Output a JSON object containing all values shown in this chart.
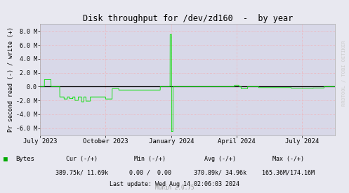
{
  "title": "Disk throughput for /dev/zd160  -  by year",
  "ylabel": "Pr second read (-) / write (+)",
  "watermark": "RRDTOOL / TOBI OETIKER",
  "munin_version": "Munin 2.0.75",
  "bg_color": "#e8e8f0",
  "plot_bg_color": "#d8d8e8",
  "grid_color_v": "#ff9999",
  "grid_color_h": "#ff9999",
  "ylim": [
    -7000000,
    9000000
  ],
  "yticks": [
    -6000000,
    -4000000,
    -2000000,
    0,
    2000000,
    4000000,
    6000000,
    8000000
  ],
  "ytick_labels": [
    "-6.0 M",
    "-4.0 M",
    "-2.0 M",
    "0.0",
    "2.0 M",
    "4.0 M",
    "6.0 M",
    "8.0 M"
  ],
  "line_color": "#00e000",
  "zero_line_color": "#000000",
  "legend_label": "Bytes",
  "legend_color": "#00aa00",
  "last_update": "Last update: Wed Aug 14 02:06:03 2024",
  "xtick_labels": [
    "July 2023",
    "October 2023",
    "January 2024",
    "April 2024",
    "July 2024"
  ],
  "col_headers": [
    "Cur (-/+)",
    "Min (-/+)",
    "Avg (-/+)",
    "Max (-/+)"
  ],
  "col_values": [
    "389.75k/ 11.69k",
    "0.00 /  0.00",
    "370.89k/ 34.96k",
    "165.36M/174.16M"
  ],
  "title_color": "#000000",
  "text_color": "#000000",
  "watermark_color": "#cccccc"
}
